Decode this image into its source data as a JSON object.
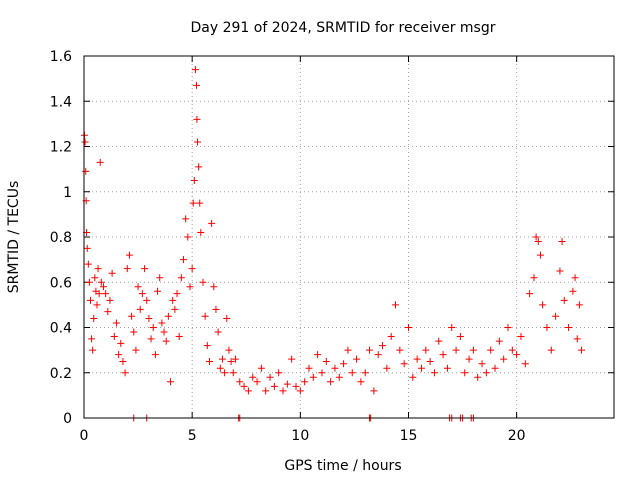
{
  "chart_data": {
    "type": "scatter",
    "title": "Day 291 of 2024, SRMTID for receiver msgr",
    "xlabel": "GPS time / hours",
    "ylabel": "SRMTID / TECUs",
    "xlim": [
      0,
      24.5
    ],
    "ylim": [
      0,
      1.6
    ],
    "xticks": [
      0,
      5,
      10,
      15,
      20
    ],
    "xtick_labels": [
      "0",
      "5",
      "10",
      "15",
      "20"
    ],
    "yticks": [
      0,
      0.2,
      0.4,
      0.6,
      0.8,
      1.0,
      1.2,
      1.4,
      1.6
    ],
    "ytick_labels": [
      "0",
      "0.2",
      "0.4",
      "0.6",
      "0.8",
      "1",
      "1.2",
      "1.4",
      "1.6"
    ],
    "grid": true,
    "marker": "+",
    "color": "#ff0000",
    "series": [
      {
        "name": "SRMTID",
        "points": [
          [
            0.02,
            1.25
          ],
          [
            0.05,
            1.22
          ],
          [
            0.08,
            1.09
          ],
          [
            0.1,
            0.96
          ],
          [
            0.12,
            0.82
          ],
          [
            0.15,
            0.75
          ],
          [
            0.2,
            0.68
          ],
          [
            0.25,
            0.6
          ],
          [
            0.3,
            0.52
          ],
          [
            0.35,
            0.35
          ],
          [
            0.4,
            0.3
          ],
          [
            0.45,
            0.44
          ],
          [
            0.5,
            0.62
          ],
          [
            0.55,
            0.56
          ],
          [
            0.6,
            0.5
          ],
          [
            0.65,
            0.66
          ],
          [
            0.7,
            0.55
          ],
          [
            0.75,
            1.13
          ],
          [
            0.8,
            0.6
          ],
          [
            0.9,
            0.58
          ],
          [
            1.0,
            0.55
          ],
          [
            1.1,
            0.47
          ],
          [
            1.2,
            0.52
          ],
          [
            1.3,
            0.64
          ],
          [
            1.4,
            0.36
          ],
          [
            1.5,
            0.42
          ],
          [
            1.6,
            0.28
          ],
          [
            1.7,
            0.33
          ],
          [
            1.8,
            0.25
          ],
          [
            1.9,
            0.2
          ],
          [
            2.0,
            0.66
          ],
          [
            2.1,
            0.72
          ],
          [
            2.2,
            0.45
          ],
          [
            2.3,
            0.38
          ],
          [
            2.4,
            0.3
          ],
          [
            2.5,
            0.58
          ],
          [
            2.6,
            0.48
          ],
          [
            2.7,
            0.55
          ],
          [
            2.8,
            0.66
          ],
          [
            2.9,
            0.52
          ],
          [
            3.0,
            0.44
          ],
          [
            3.1,
            0.35
          ],
          [
            3.2,
            0.4
          ],
          [
            3.3,
            0.28
          ],
          [
            3.4,
            0.56
          ],
          [
            3.5,
            0.62
          ],
          [
            3.6,
            0.42
          ],
          [
            3.7,
            0.38
          ],
          [
            3.8,
            0.34
          ],
          [
            3.9,
            0.45
          ],
          [
            4.0,
            0.16
          ],
          [
            4.1,
            0.52
          ],
          [
            4.2,
            0.48
          ],
          [
            4.3,
            0.55
          ],
          [
            4.4,
            0.36
          ],
          [
            4.5,
            0.62
          ],
          [
            4.6,
            0.7
          ],
          [
            4.7,
            0.88
          ],
          [
            4.8,
            0.8
          ],
          [
            4.9,
            0.58
          ],
          [
            5.0,
            0.66
          ],
          [
            5.05,
            0.95
          ],
          [
            5.1,
            1.05
          ],
          [
            5.15,
            1.54
          ],
          [
            5.2,
            1.47
          ],
          [
            5.22,
            1.32
          ],
          [
            5.25,
            1.22
          ],
          [
            5.3,
            1.11
          ],
          [
            5.35,
            0.95
          ],
          [
            5.4,
            0.82
          ],
          [
            5.5,
            0.6
          ],
          [
            5.6,
            0.45
          ],
          [
            5.7,
            0.32
          ],
          [
            5.8,
            0.25
          ],
          [
            5.9,
            0.86
          ],
          [
            6.0,
            0.58
          ],
          [
            6.1,
            0.48
          ],
          [
            6.2,
            0.38
          ],
          [
            6.3,
            0.22
          ],
          [
            6.4,
            0.26
          ],
          [
            6.5,
            0.2
          ],
          [
            6.6,
            0.44
          ],
          [
            6.7,
            0.3
          ],
          [
            6.8,
            0.25
          ],
          [
            6.9,
            0.2
          ],
          [
            7.0,
            0.26
          ],
          [
            7.2,
            0.16
          ],
          [
            7.4,
            0.14
          ],
          [
            7.6,
            0.12
          ],
          [
            7.8,
            0.18
          ],
          [
            8.0,
            0.16
          ],
          [
            8.2,
            0.22
          ],
          [
            8.4,
            0.12
          ],
          [
            8.6,
            0.18
          ],
          [
            8.8,
            0.14
          ],
          [
            9.0,
            0.2
          ],
          [
            9.2,
            0.12
          ],
          [
            9.4,
            0.15
          ],
          [
            9.6,
            0.26
          ],
          [
            9.8,
            0.14
          ],
          [
            10.0,
            0.12
          ],
          [
            10.2,
            0.16
          ],
          [
            10.4,
            0.22
          ],
          [
            10.6,
            0.18
          ],
          [
            10.8,
            0.28
          ],
          [
            11.0,
            0.2
          ],
          [
            11.2,
            0.25
          ],
          [
            11.4,
            0.16
          ],
          [
            11.6,
            0.22
          ],
          [
            11.8,
            0.18
          ],
          [
            12.0,
            0.24
          ],
          [
            12.2,
            0.3
          ],
          [
            12.4,
            0.2
          ],
          [
            12.6,
            0.26
          ],
          [
            12.8,
            0.16
          ],
          [
            13.0,
            0.2
          ],
          [
            13.2,
            0.3
          ],
          [
            13.4,
            0.12
          ],
          [
            13.6,
            0.28
          ],
          [
            13.8,
            0.32
          ],
          [
            14.0,
            0.22
          ],
          [
            14.2,
            0.36
          ],
          [
            14.4,
            0.5
          ],
          [
            14.6,
            0.3
          ],
          [
            14.8,
            0.24
          ],
          [
            15.0,
            0.4
          ],
          [
            15.2,
            0.18
          ],
          [
            15.4,
            0.26
          ],
          [
            15.6,
            0.22
          ],
          [
            15.8,
            0.3
          ],
          [
            16.0,
            0.25
          ],
          [
            16.2,
            0.2
          ],
          [
            16.4,
            0.34
          ],
          [
            16.6,
            0.28
          ],
          [
            16.8,
            0.22
          ],
          [
            17.0,
            0.4
          ],
          [
            17.2,
            0.3
          ],
          [
            17.4,
            0.36
          ],
          [
            17.6,
            0.2
          ],
          [
            17.8,
            0.26
          ],
          [
            18.0,
            0.3
          ],
          [
            18.2,
            0.18
          ],
          [
            18.4,
            0.24
          ],
          [
            18.6,
            0.2
          ],
          [
            18.8,
            0.3
          ],
          [
            19.0,
            0.22
          ],
          [
            19.2,
            0.34
          ],
          [
            19.4,
            0.26
          ],
          [
            19.6,
            0.4
          ],
          [
            19.8,
            0.3
          ],
          [
            20.0,
            0.28
          ],
          [
            20.2,
            0.36
          ],
          [
            20.4,
            0.24
          ],
          [
            20.6,
            0.55
          ],
          [
            20.8,
            0.62
          ],
          [
            20.9,
            0.8
          ],
          [
            21.0,
            0.78
          ],
          [
            21.1,
            0.72
          ],
          [
            21.2,
            0.5
          ],
          [
            21.4,
            0.4
          ],
          [
            21.6,
            0.3
          ],
          [
            21.8,
            0.45
          ],
          [
            22.0,
            0.65
          ],
          [
            22.1,
            0.78
          ],
          [
            22.2,
            0.52
          ],
          [
            22.4,
            0.4
          ],
          [
            22.6,
            0.56
          ],
          [
            22.7,
            0.62
          ],
          [
            22.8,
            0.35
          ],
          [
            22.9,
            0.5
          ],
          [
            23.0,
            0.3
          ],
          [
            2.3,
            0.0
          ],
          [
            2.9,
            0.0
          ],
          [
            7.15,
            0.0
          ],
          [
            7.2,
            0.0
          ],
          [
            13.2,
            0.0
          ],
          [
            13.25,
            0.0
          ],
          [
            16.9,
            0.0
          ],
          [
            17.0,
            0.0
          ],
          [
            17.4,
            0.0
          ],
          [
            17.5,
            0.0
          ],
          [
            17.9,
            0.0
          ],
          [
            18.0,
            0.0
          ]
        ]
      }
    ]
  }
}
